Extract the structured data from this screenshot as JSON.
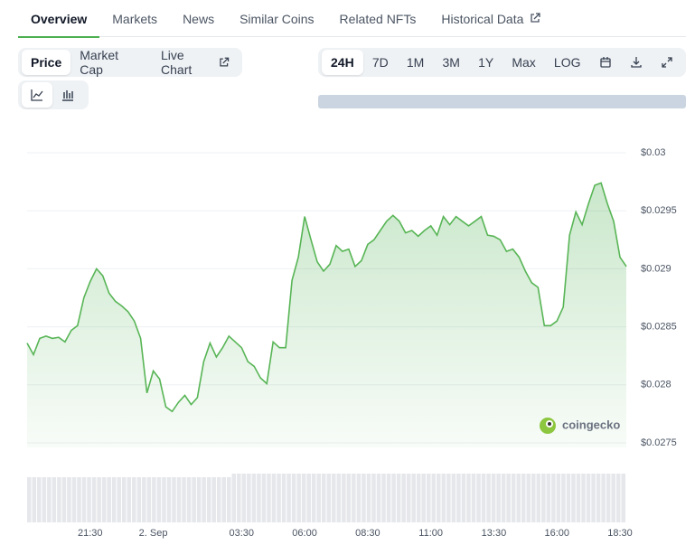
{
  "tabs": [
    "Overview",
    "Markets",
    "News",
    "Similar Coins",
    "Related NFTs",
    "Historical Data"
  ],
  "metric_tabs": [
    "Price",
    "Market Cap",
    "Live Chart"
  ],
  "range_tabs": [
    "24H",
    "7D",
    "1M",
    "3M",
    "1Y",
    "Max",
    "LOG"
  ],
  "watermark": "coingecko",
  "chart_data": {
    "type": "area",
    "color": "#58b556",
    "grid": true,
    "ylim": [
      0.0275,
      0.03
    ],
    "yticks": [
      {
        "value": 0.03,
        "label": "$0.03"
      },
      {
        "value": 0.0295,
        "label": "$0.0295"
      },
      {
        "value": 0.029,
        "label": "$0.029"
      },
      {
        "value": 0.0285,
        "label": "$0.0285"
      },
      {
        "value": 0.028,
        "label": "$0.028"
      },
      {
        "value": 0.0275,
        "label": "$0.0275"
      }
    ],
    "categories": [
      null,
      null,
      null,
      null,
      null,
      null,
      null,
      null,
      null,
      null,
      "21:30",
      null,
      null,
      null,
      null,
      null,
      null,
      null,
      null,
      null,
      "2. Sep",
      null,
      null,
      null,
      null,
      null,
      null,
      null,
      null,
      null,
      null,
      null,
      null,
      null,
      "03:30",
      null,
      null,
      null,
      null,
      null,
      null,
      null,
      null,
      null,
      "06:00",
      null,
      null,
      null,
      null,
      null,
      null,
      null,
      null,
      null,
      "08:30",
      null,
      null,
      null,
      null,
      null,
      null,
      null,
      null,
      null,
      "11:00",
      null,
      null,
      null,
      null,
      null,
      null,
      null,
      null,
      null,
      "13:30",
      null,
      null,
      null,
      null,
      null,
      null,
      null,
      null,
      null,
      "16:00",
      null,
      null,
      null,
      null,
      null,
      null,
      null,
      null,
      null,
      "18:30",
      null
    ],
    "values": [
      0.02836,
      0.02826,
      0.0284,
      0.02842,
      0.0284,
      0.02841,
      0.02837,
      0.02847,
      0.02851,
      0.02875,
      0.02889,
      0.029,
      0.02894,
      0.02879,
      0.02872,
      0.02868,
      0.02863,
      0.02855,
      0.0284,
      0.02793,
      0.02812,
      0.02805,
      0.02781,
      0.02777,
      0.02785,
      0.02791,
      0.02783,
      0.02789,
      0.0282,
      0.02836,
      0.02824,
      0.02832,
      0.02842,
      0.02837,
      0.02832,
      0.0282,
      0.02816,
      0.02806,
      0.02801,
      0.02837,
      0.02832,
      0.02832,
      0.0289,
      0.0291,
      0.02945,
      0.02925,
      0.02906,
      0.02898,
      0.02904,
      0.0292,
      0.02915,
      0.02917,
      0.02902,
      0.02907,
      0.02921,
      0.02925,
      0.02933,
      0.02941,
      0.02946,
      0.02941,
      0.02931,
      0.02933,
      0.02928,
      0.02933,
      0.02937,
      0.02929,
      0.02945,
      0.02938,
      0.02945,
      0.02941,
      0.02937,
      0.02941,
      0.02945,
      0.02929,
      0.02928,
      0.02925,
      0.02915,
      0.02917,
      0.0291,
      0.02898,
      0.02888,
      0.02884,
      0.02851,
      0.02851,
      0.02855,
      0.02867,
      0.02929,
      0.02949,
      0.02938,
      0.02956,
      0.02972,
      0.02974,
      0.02956,
      0.02941,
      0.0291,
      0.02902
    ]
  }
}
